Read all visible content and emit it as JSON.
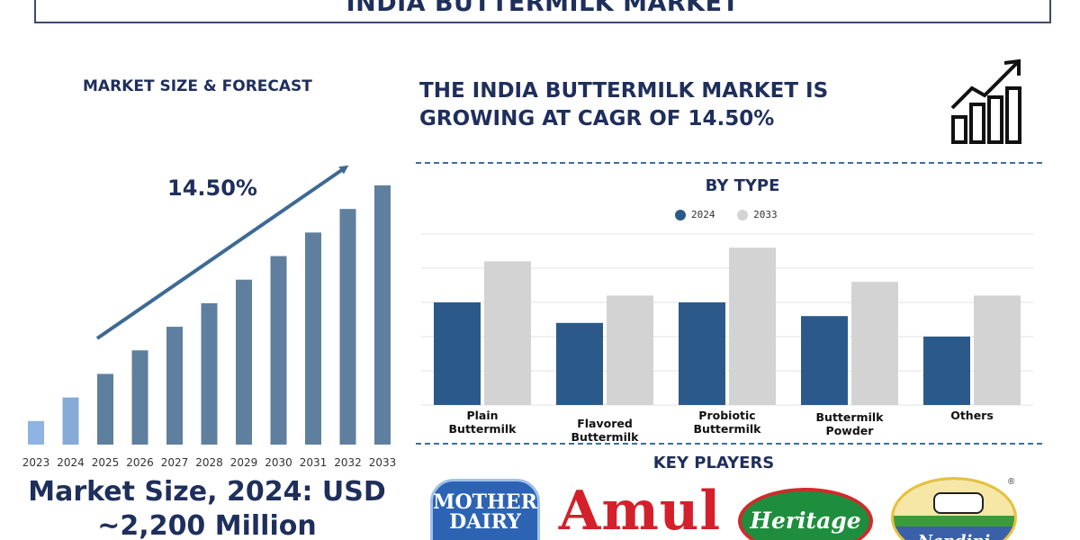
{
  "header": {
    "title": "INDIA BUTTERMILK MARKET"
  },
  "left_panel": {
    "heading": "MARKET SIZE & FORECAST",
    "cagr_label": "14.50%",
    "market_size_line1": "Market Size, 2024: USD",
    "market_size_line2": "~2,200 Million"
  },
  "right_panel": {
    "headline_line1": "THE INDIA BUTTERMILK MARKET IS",
    "headline_line2": "GROWING AT CAGR OF 14.50%",
    "icon": "growth-chart-icon",
    "by_type_heading": "BY TYPE",
    "key_players_heading": "KEY PLAYERS"
  },
  "key_players": [
    {
      "name": "Mother Dairy",
      "logo_text_1": "MOTHER",
      "logo_text_2": "DAIRY",
      "color": "#2c63b3"
    },
    {
      "name": "Amul",
      "logo_text_1": "Amul",
      "color": "#d4202a"
    },
    {
      "name": "Heritage",
      "logo_text_1": "Heritage",
      "color": "#1e8e3e"
    },
    {
      "name": "Nandini",
      "logo_text_1": "Nandini",
      "color": "#3a60a8"
    }
  ],
  "colors": {
    "primary_text": "#1f2f5c",
    "bar_2024": "#2b5a8a",
    "bar_2033": "#d3d3d3",
    "forecast_first": "#8db4e2",
    "forecast_dark": "#5f7f9f",
    "arrow": "#3d6a95"
  },
  "chart_data": [
    {
      "type": "bar",
      "name": "market-size-forecast",
      "categories": [
        "2023",
        "2024",
        "2025",
        "2026",
        "2027",
        "2028",
        "2029",
        "2030",
        "2031",
        "2032",
        "2033"
      ],
      "values": [
        1.0,
        2.0,
        3.0,
        4.0,
        5.0,
        6.0,
        7.0,
        8.0,
        9.0,
        10.0,
        11.0
      ],
      "y_axis_visible": false,
      "annotation": "14.50%",
      "grid": false
    },
    {
      "type": "bar",
      "name": "by-type",
      "title": "BY TYPE",
      "categories": [
        "Plain Buttermilk",
        "Flavored Buttermilk",
        "Probiotic Buttermilk",
        "Buttermilk Powder",
        "Others"
      ],
      "series": [
        {
          "name": "2024",
          "values": [
            3.0,
            2.4,
            3.0,
            2.6,
            2.0
          ]
        },
        {
          "name": "2033",
          "values": [
            4.2,
            3.2,
            4.6,
            3.6,
            3.2
          ]
        }
      ],
      "ylim": [
        0,
        5
      ],
      "y_tick_labels_visible": false,
      "grid": true,
      "legend_position": "top-center"
    }
  ]
}
